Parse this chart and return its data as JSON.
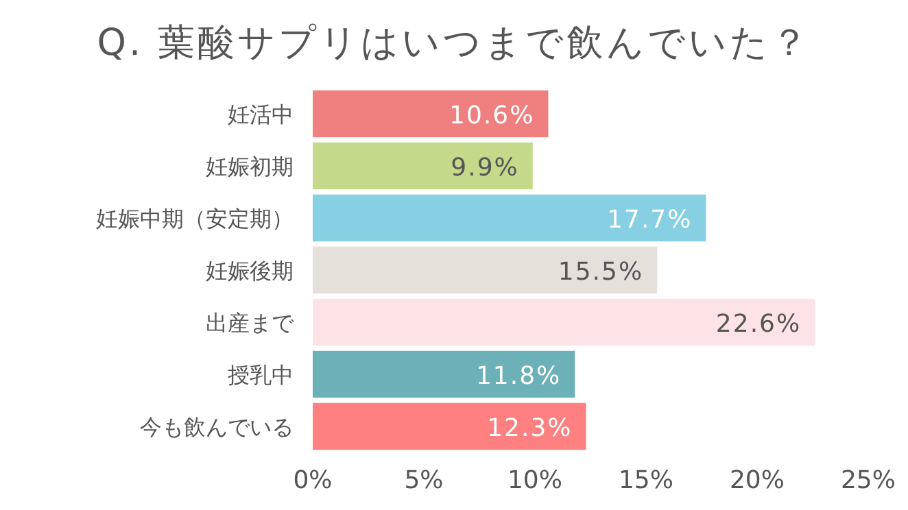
{
  "chart_data": {
    "type": "bar",
    "orientation": "horizontal",
    "title": "Q. 葉酸サプリはいつまで飲んでいた？",
    "categories": [
      "妊活中",
      "妊娠初期",
      "妊娠中期（安定期）",
      "妊娠後期",
      "出産まで",
      "授乳中",
      "今も飲んでいる"
    ],
    "values": [
      10.6,
      9.9,
      17.7,
      15.5,
      22.6,
      11.8,
      12.3
    ],
    "colors": [
      "#f07f7f",
      "#c5d98a",
      "#87cfe3",
      "#e6e0da",
      "#fde2e6",
      "#6cb0b8",
      "#ff8080"
    ],
    "value_labels": [
      "10.6%",
      "9.9%",
      "17.7%",
      "15.5%",
      "22.6%",
      "11.8%",
      "12.3%"
    ],
    "xlim": [
      0,
      25
    ],
    "xticks": [
      {
        "value": 0,
        "label": "0%"
      },
      {
        "value": 5,
        "label": "5%"
      },
      {
        "value": 10,
        "label": "10%"
      },
      {
        "value": 15,
        "label": "15%"
      },
      {
        "value": 20,
        "label": "20%"
      },
      {
        "value": 25,
        "label": "25%"
      }
    ]
  }
}
